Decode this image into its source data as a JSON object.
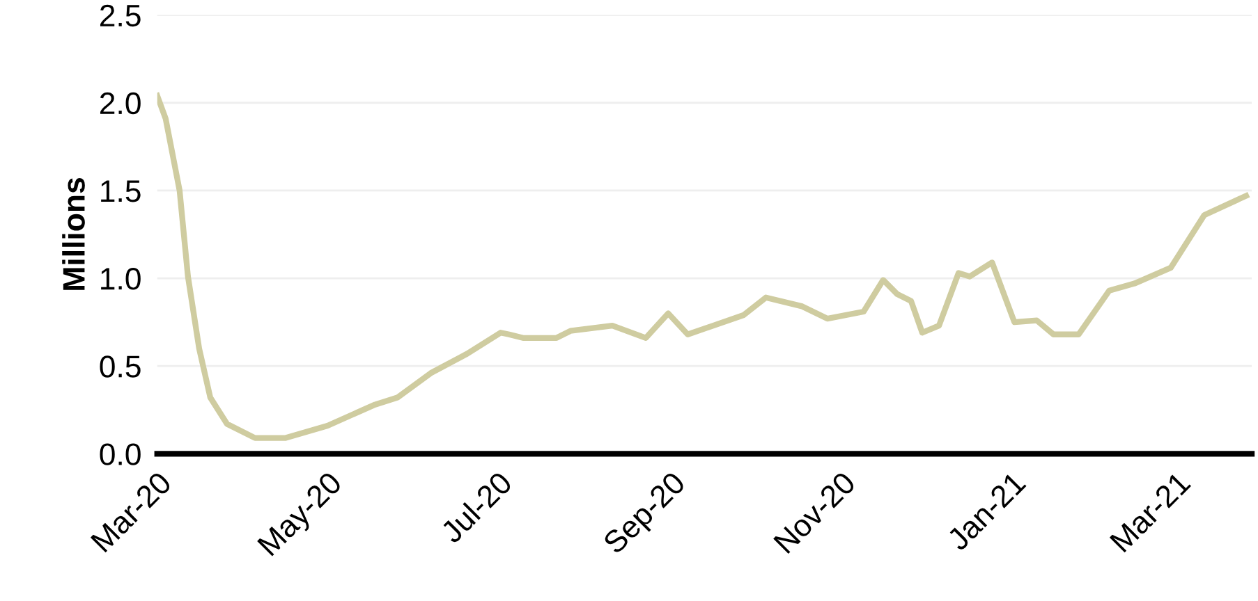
{
  "chart_data": {
    "type": "line",
    "ylabel": "Millions",
    "x": [
      "2020-03-01",
      "2020-03-04",
      "2020-03-09",
      "2020-03-12",
      "2020-03-16",
      "2020-03-20",
      "2020-03-26",
      "2020-04-05",
      "2020-04-16",
      "2020-05-01",
      "2020-05-18",
      "2020-05-26",
      "2020-06-07",
      "2020-06-20",
      "2020-07-02",
      "2020-07-05",
      "2020-07-10",
      "2020-07-22",
      "2020-07-27",
      "2020-08-11",
      "2020-08-23",
      "2020-08-31",
      "2020-09-07",
      "2020-09-27",
      "2020-10-05",
      "2020-10-18",
      "2020-10-27",
      "2020-11-09",
      "2020-11-16",
      "2020-11-21",
      "2020-11-26",
      "2020-11-30",
      "2020-12-06",
      "2020-12-13",
      "2020-12-17",
      "2020-12-25",
      "2021-01-02",
      "2021-01-10",
      "2021-01-16",
      "2021-01-25",
      "2021-02-05",
      "2021-02-14",
      "2021-02-27",
      "2021-03-11",
      "2021-03-26"
    ],
    "series": [
      {
        "color": "#cfcca0",
        "values": [
          2.04,
          1.91,
          1.5,
          1.01,
          0.6,
          0.32,
          0.17,
          0.09,
          0.09,
          0.16,
          0.28,
          0.32,
          0.46,
          0.57,
          0.69,
          0.68,
          0.66,
          0.66,
          0.7,
          0.73,
          0.66,
          0.8,
          0.68,
          0.79,
          0.89,
          0.84,
          0.77,
          0.81,
          0.99,
          0.91,
          0.87,
          0.69,
          0.73,
          1.03,
          1.01,
          1.09,
          0.75,
          0.76,
          0.68,
          0.68,
          0.93,
          0.97,
          1.06,
          1.36,
          1.47
        ]
      }
    ],
    "xlim": [
      "2020-03-01",
      "2021-03-28"
    ],
    "xticks": [
      {
        "value": "2020-03-01",
        "label": "Mar-20"
      },
      {
        "value": "2020-05-01",
        "label": "May-20"
      },
      {
        "value": "2020-07-01",
        "label": "Jul-20"
      },
      {
        "value": "2020-09-01",
        "label": "Sep-20"
      },
      {
        "value": "2020-11-01",
        "label": "Nov-20"
      },
      {
        "value": "2021-01-01",
        "label": "Jan-21"
      },
      {
        "value": "2021-03-01",
        "label": "Mar-21"
      }
    ],
    "ylim": [
      0,
      2.5
    ],
    "yticks": [
      {
        "value": 0,
        "label": "0.0"
      },
      {
        "value": 0.5,
        "label": "0.5"
      },
      {
        "value": 1,
        "label": "1.0"
      },
      {
        "value": 1.5,
        "label": "1.5"
      },
      {
        "value": 2,
        "label": "2.0"
      },
      {
        "value": 2.5,
        "label": "2.5"
      }
    ],
    "grid": "y",
    "legend": false,
    "marker": "none",
    "line_style": "solid"
  }
}
